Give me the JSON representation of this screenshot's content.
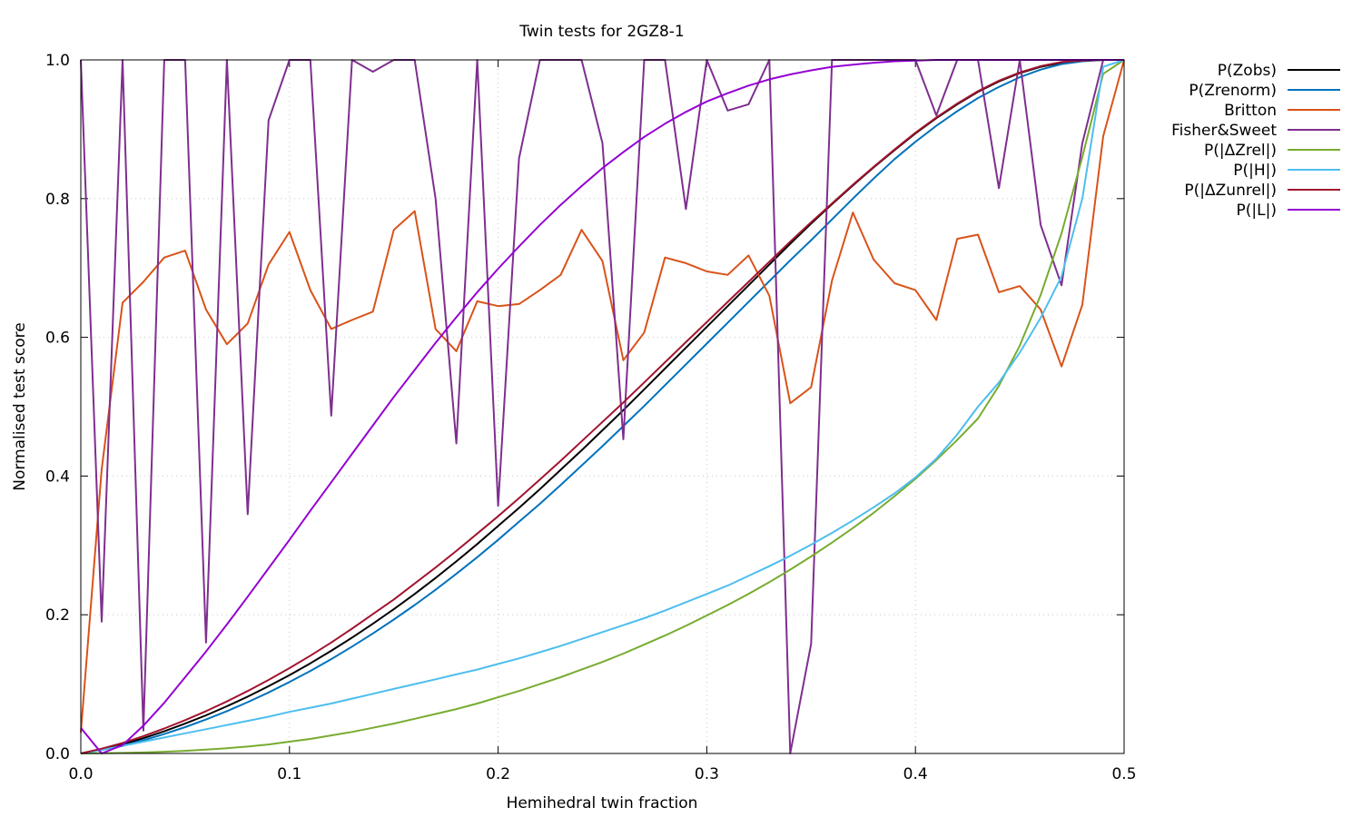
{
  "chart_data": {
    "type": "line",
    "title": "Twin tests for 2GZ8-1",
    "xlabel": "Hemihedral twin fraction",
    "ylabel": "Normalised test score",
    "xlim": [
      0,
      0.5
    ],
    "ylim": [
      0,
      1
    ],
    "grid": true,
    "legend_position": "outside-top-right",
    "x_ticks": [
      "0.0",
      "0.1",
      "0.2",
      "0.3",
      "0.4",
      "0.5"
    ],
    "y_ticks": [
      "0.0",
      "0.2",
      "0.4",
      "0.6",
      "0.8",
      "1.0"
    ],
    "x": [
      0,
      0.01,
      0.02,
      0.03,
      0.04,
      0.05,
      0.06,
      0.07,
      0.08,
      0.09,
      0.1,
      0.11,
      0.12,
      0.13,
      0.14,
      0.15,
      0.16,
      0.17,
      0.18,
      0.19,
      0.2,
      0.21,
      0.22,
      0.23,
      0.24,
      0.25,
      0.26,
      0.27,
      0.28,
      0.29,
      0.3,
      0.31,
      0.32,
      0.33,
      0.34,
      0.35,
      0.36,
      0.37,
      0.38,
      0.39,
      0.4,
      0.41,
      0.42,
      0.43,
      0.44,
      0.45,
      0.46,
      0.47,
      0.48,
      0.49,
      0.5
    ],
    "series": [
      {
        "name": "P(Zobs)",
        "color": "#000000",
        "values": [
          0,
          0.006,
          0.013,
          0.022,
          0.032,
          0.043,
          0.055,
          0.068,
          0.082,
          0.097,
          0.113,
          0.13,
          0.148,
          0.167,
          0.187,
          0.208,
          0.23,
          0.253,
          0.277,
          0.302,
          0.328,
          0.354,
          0.381,
          0.409,
          0.437,
          0.466,
          0.495,
          0.525,
          0.555,
          0.585,
          0.615,
          0.645,
          0.675,
          0.705,
          0.735,
          0.764,
          0.792,
          0.819,
          0.845,
          0.87,
          0.894,
          0.916,
          0.936,
          0.954,
          0.969,
          0.981,
          0.99,
          0.996,
          0.999,
          1.0,
          1.0
        ]
      },
      {
        "name": "P(Zrenorm)",
        "color": "#0072bd",
        "values": [
          0,
          0.005,
          0.011,
          0.019,
          0.028,
          0.038,
          0.049,
          0.061,
          0.074,
          0.088,
          0.103,
          0.119,
          0.136,
          0.154,
          0.173,
          0.193,
          0.214,
          0.236,
          0.259,
          0.283,
          0.308,
          0.334,
          0.36,
          0.387,
          0.415,
          0.443,
          0.472,
          0.501,
          0.531,
          0.561,
          0.591,
          0.621,
          0.651,
          0.681,
          0.711,
          0.74,
          0.77,
          0.8,
          0.829,
          0.857,
          0.882,
          0.905,
          0.926,
          0.945,
          0.961,
          0.975,
          0.986,
          0.994,
          0.998,
          1.0,
          1.0
        ]
      },
      {
        "name": "Britton",
        "color": "#d95319",
        "values": [
          0.03,
          0.41,
          0.65,
          0.68,
          0.715,
          0.725,
          0.64,
          0.59,
          0.62,
          0.705,
          0.752,
          0.668,
          0.612,
          0.625,
          0.637,
          0.755,
          0.782,
          0.612,
          0.58,
          0.652,
          0.645,
          0.648,
          0.668,
          0.69,
          0.755,
          0.71,
          0.567,
          0.607,
          0.715,
          0.707,
          0.695,
          0.69,
          0.718,
          0.66,
          0.505,
          0.528,
          0.682,
          0.78,
          0.712,
          0.678,
          0.668,
          0.625,
          0.742,
          0.748,
          0.665,
          0.674,
          0.64,
          0.558,
          0.647,
          0.89,
          1.0
        ]
      },
      {
        "name": "Fisher&Sweet",
        "color": "#7e2f8e",
        "values": [
          1.0,
          0.19,
          1.0,
          0.033,
          1.0,
          1.0,
          0.16,
          1.0,
          0.345,
          0.913,
          1.0,
          1.0,
          0.487,
          1.0,
          0.983,
          1.0,
          1.0,
          0.8,
          0.447,
          1.0,
          0.357,
          0.858,
          1.0,
          1.0,
          1.0,
          0.88,
          0.453,
          1.0,
          1.0,
          0.785,
          1.0,
          0.927,
          0.936,
          1.0,
          0.0,
          0.158,
          1.0,
          1.0,
          1.0,
          1.0,
          1.0,
          0.92,
          1.0,
          1.0,
          0.815,
          1.0,
          0.762,
          0.675,
          0.88,
          1.0,
          1.0
        ]
      },
      {
        "name": "P(|ΔZrel|)",
        "color": "#77ac30",
        "values": [
          0,
          0.0003,
          0.0008,
          0.0015,
          0.0025,
          0.0038,
          0.0055,
          0.0076,
          0.01,
          0.013,
          0.017,
          0.021,
          0.026,
          0.031,
          0.037,
          0.043,
          0.05,
          0.057,
          0.064,
          0.072,
          0.081,
          0.09,
          0.1,
          0.11,
          0.121,
          0.132,
          0.144,
          0.157,
          0.17,
          0.184,
          0.199,
          0.214,
          0.23,
          0.247,
          0.265,
          0.284,
          0.304,
          0.325,
          0.347,
          0.371,
          0.396,
          0.423,
          0.452,
          0.483,
          0.53,
          0.588,
          0.661,
          0.75,
          0.86,
          0.98,
          1.0
        ]
      },
      {
        "name": "P(|H|)",
        "color": "#4dbeee",
        "values": [
          0,
          0.005,
          0.011,
          0.017,
          0.023,
          0.029,
          0.035,
          0.041,
          0.047,
          0.053,
          0.06,
          0.066,
          0.072,
          0.079,
          0.086,
          0.093,
          0.1,
          0.107,
          0.114,
          0.121,
          0.129,
          0.137,
          0.146,
          0.155,
          0.165,
          0.175,
          0.185,
          0.195,
          0.206,
          0.218,
          0.23,
          0.242,
          0.256,
          0.27,
          0.285,
          0.301,
          0.318,
          0.336,
          0.355,
          0.375,
          0.398,
          0.425,
          0.46,
          0.5,
          0.535,
          0.578,
          0.628,
          0.688,
          0.8,
          0.99,
          1.0
        ]
      },
      {
        "name": "P(|ΔZunrel|)",
        "color": "#a2142f",
        "values": [
          0,
          0.007,
          0.015,
          0.025,
          0.036,
          0.048,
          0.061,
          0.075,
          0.09,
          0.106,
          0.123,
          0.141,
          0.16,
          0.18,
          0.201,
          0.222,
          0.245,
          0.268,
          0.292,
          0.317,
          0.342,
          0.368,
          0.395,
          0.422,
          0.45,
          0.478,
          0.506,
          0.535,
          0.564,
          0.593,
          0.622,
          0.651,
          0.68,
          0.709,
          0.738,
          0.766,
          0.793,
          0.82,
          0.846,
          0.871,
          0.895,
          0.917,
          0.937,
          0.955,
          0.97,
          0.982,
          0.991,
          0.997,
          0.999,
          1.0,
          1.0
        ]
      },
      {
        "name": "P(|L|)",
        "color": "#9400d3",
        "values": [
          0.037,
          0.0,
          0.012,
          0.04,
          0.073,
          0.11,
          0.147,
          0.186,
          0.226,
          0.267,
          0.308,
          0.35,
          0.391,
          0.432,
          0.473,
          0.514,
          0.553,
          0.592,
          0.629,
          0.665,
          0.699,
          0.731,
          0.762,
          0.791,
          0.818,
          0.844,
          0.867,
          0.889,
          0.908,
          0.925,
          0.94,
          0.952,
          0.963,
          0.972,
          0.979,
          0.985,
          0.99,
          0.993,
          0.996,
          0.998,
          0.999,
          1.0,
          1.0,
          1.0,
          1.0,
          1.0,
          1.0,
          1.0,
          1.0,
          1.0,
          1.0
        ]
      }
    ]
  }
}
